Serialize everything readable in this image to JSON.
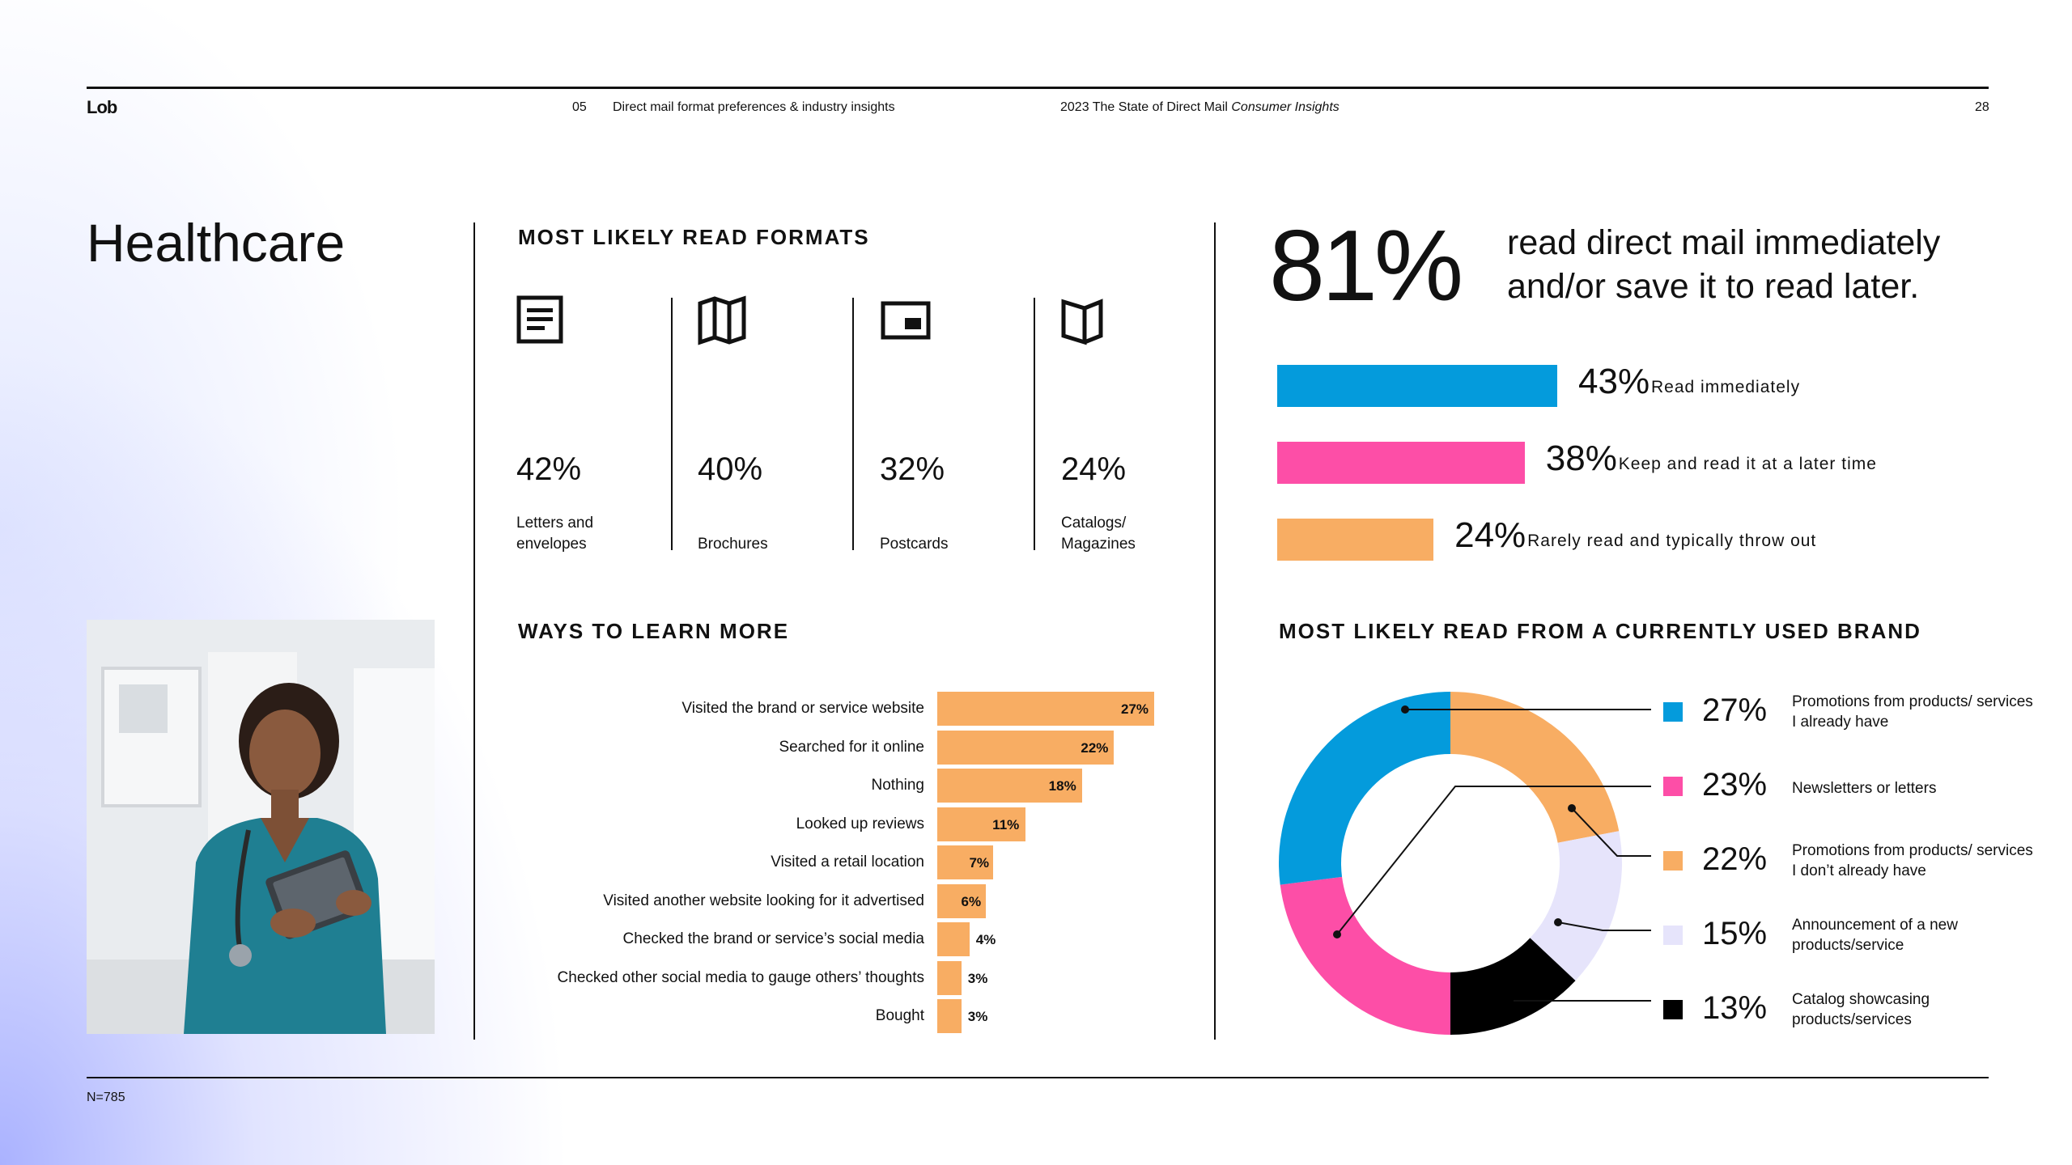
{
  "header": {
    "logo": "Lob",
    "section_number": "05",
    "section_title": "Direct mail format preferences & industry insights",
    "report_title": "2023 The State of Direct Mail",
    "report_title_italic": "Consumer Insights",
    "page_number": "28"
  },
  "page_title": "Healthcare",
  "formats": {
    "title": "MOST LIKELY READ FORMATS",
    "items": [
      {
        "icon": "letter-icon",
        "pct": "42%",
        "label": "Letters and envelopes"
      },
      {
        "icon": "brochure-icon",
        "pct": "40%",
        "label": "Brochures"
      },
      {
        "icon": "postcard-icon",
        "pct": "32%",
        "label": "Postcards"
      },
      {
        "icon": "catalog-icon",
        "pct": "24%",
        "label": "Catalogs/ Magazines"
      }
    ]
  },
  "learn_more": {
    "title": "WAYS TO LEARN MORE",
    "color": "#f8ad63",
    "rows": [
      {
        "label": "Visited the brand or service website",
        "value": 27,
        "display": "27%"
      },
      {
        "label": "Searched for it online",
        "value": 22,
        "display": "22%"
      },
      {
        "label": "Nothing",
        "value": 18,
        "display": "18%"
      },
      {
        "label": "Looked up reviews",
        "value": 11,
        "display": "11%"
      },
      {
        "label": "Visited a retail location",
        "value": 7,
        "display": "7%"
      },
      {
        "label": "Visited another website looking for it advertised",
        "value": 6,
        "display": "6%"
      },
      {
        "label": "Checked the brand or service’s social media",
        "value": 4,
        "display": "4%"
      },
      {
        "label": "Checked other social media to gauge others’ thoughts",
        "value": 3,
        "display": "3%"
      },
      {
        "label": "Bought",
        "value": 3,
        "display": "3%"
      }
    ]
  },
  "read_behavior": {
    "headline_pct": "81%",
    "headline_text_line1": "read direct mail immediately",
    "headline_text_line2": "and/or save it to read later.",
    "bars": [
      {
        "pct": "43%",
        "value": 43,
        "label": "Read immediately",
        "color": "#049bdc"
      },
      {
        "pct": "38%",
        "value": 38,
        "label": "Keep and read it at a later time",
        "color": "#fd4ea7"
      },
      {
        "pct": "24%",
        "value": 24,
        "label": "Rarely read and typically throw out",
        "color": "#f8ad63"
      }
    ]
  },
  "brand": {
    "title": "MOST LIKELY READ FROM A CURRENTLY USED BRAND",
    "chart_data": {
      "type": "pie",
      "variant": "donut",
      "series": [
        {
          "name": "Promotions from products/ services I already have",
          "value": 27,
          "display": "27%",
          "color": "#049bdc"
        },
        {
          "name": "Newsletters or letters",
          "value": 23,
          "display": "23%",
          "color": "#fd4ea7"
        },
        {
          "name": "Promotions from products/ services I don’t already have",
          "value": 22,
          "display": "22%",
          "color": "#f8ad63"
        },
        {
          "name": "Announcement of a new products/service",
          "value": 15,
          "display": "15%",
          "color": "#e6e4fb"
        },
        {
          "name": "Catalog showcasing products/services",
          "value": 13,
          "display": "13%",
          "color": "#000000"
        }
      ]
    }
  },
  "footer": {
    "note": "N=785"
  }
}
